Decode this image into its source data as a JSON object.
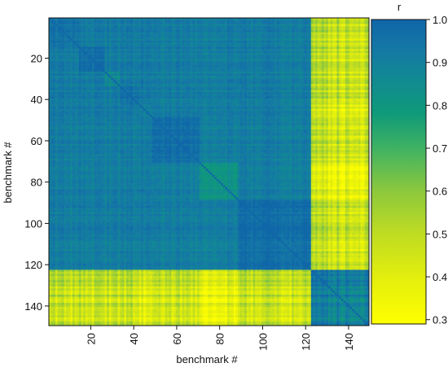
{
  "chart_data": {
    "type": "heatmap",
    "title": "",
    "xlabel": "benchmark #",
    "ylabel": "benchmark #",
    "n": 149,
    "x_ticks": [
      20,
      40,
      60,
      80,
      100,
      120,
      140
    ],
    "y_ticks": [
      20,
      40,
      60,
      80,
      100,
      120,
      140
    ],
    "y_reversed": true,
    "colorbar": {
      "label": "r",
      "range": [
        0.29,
        1.0
      ],
      "ticks": [
        "0.3",
        "0.4",
        "0.5",
        "0.6",
        "0.7",
        "0.8",
        "0.9",
        "1.0"
      ],
      "tick_values": [
        0.3,
        0.4,
        0.5,
        0.6,
        0.7,
        0.8,
        0.9,
        1.0
      ]
    },
    "colormap": [
      {
        "value": 0.29,
        "color": "#ffff00"
      },
      {
        "value": 0.4,
        "color": "#e2ee0d"
      },
      {
        "value": 0.5,
        "color": "#bfdc22"
      },
      {
        "value": 0.6,
        "color": "#8cc83c"
      },
      {
        "value": 0.7,
        "color": "#3fb263"
      },
      {
        "value": 0.78,
        "color": "#109a79"
      },
      {
        "value": 0.86,
        "color": "#118a92"
      },
      {
        "value": 0.93,
        "color": "#1578a5"
      },
      {
        "value": 1.0,
        "color": "#1066a8"
      }
    ],
    "structure": {
      "main_cluster": {
        "from": 1,
        "to": 122,
        "typical_r": 0.95
      },
      "sub_blocks": [
        {
          "from": 1,
          "to": 14,
          "typical_r": 0.94
        },
        {
          "from": 15,
          "to": 26,
          "typical_r": 0.96
        },
        {
          "from": 27,
          "to": 33,
          "typical_r": 0.86
        },
        {
          "from": 34,
          "to": 42,
          "typical_r": 0.94
        },
        {
          "from": 43,
          "to": 48,
          "typical_r": 0.88
        },
        {
          "from": 49,
          "to": 70,
          "typical_r": 0.97
        },
        {
          "from": 71,
          "to": 88,
          "typical_r": 0.82
        },
        {
          "from": 89,
          "to": 122,
          "typical_r": 0.97
        }
      ],
      "between_sub_blocks_r": 0.85,
      "second_cluster": {
        "from": 123,
        "to": 149,
        "typical_r": 0.9
      },
      "off_diagonal_r": 0.47
    }
  }
}
